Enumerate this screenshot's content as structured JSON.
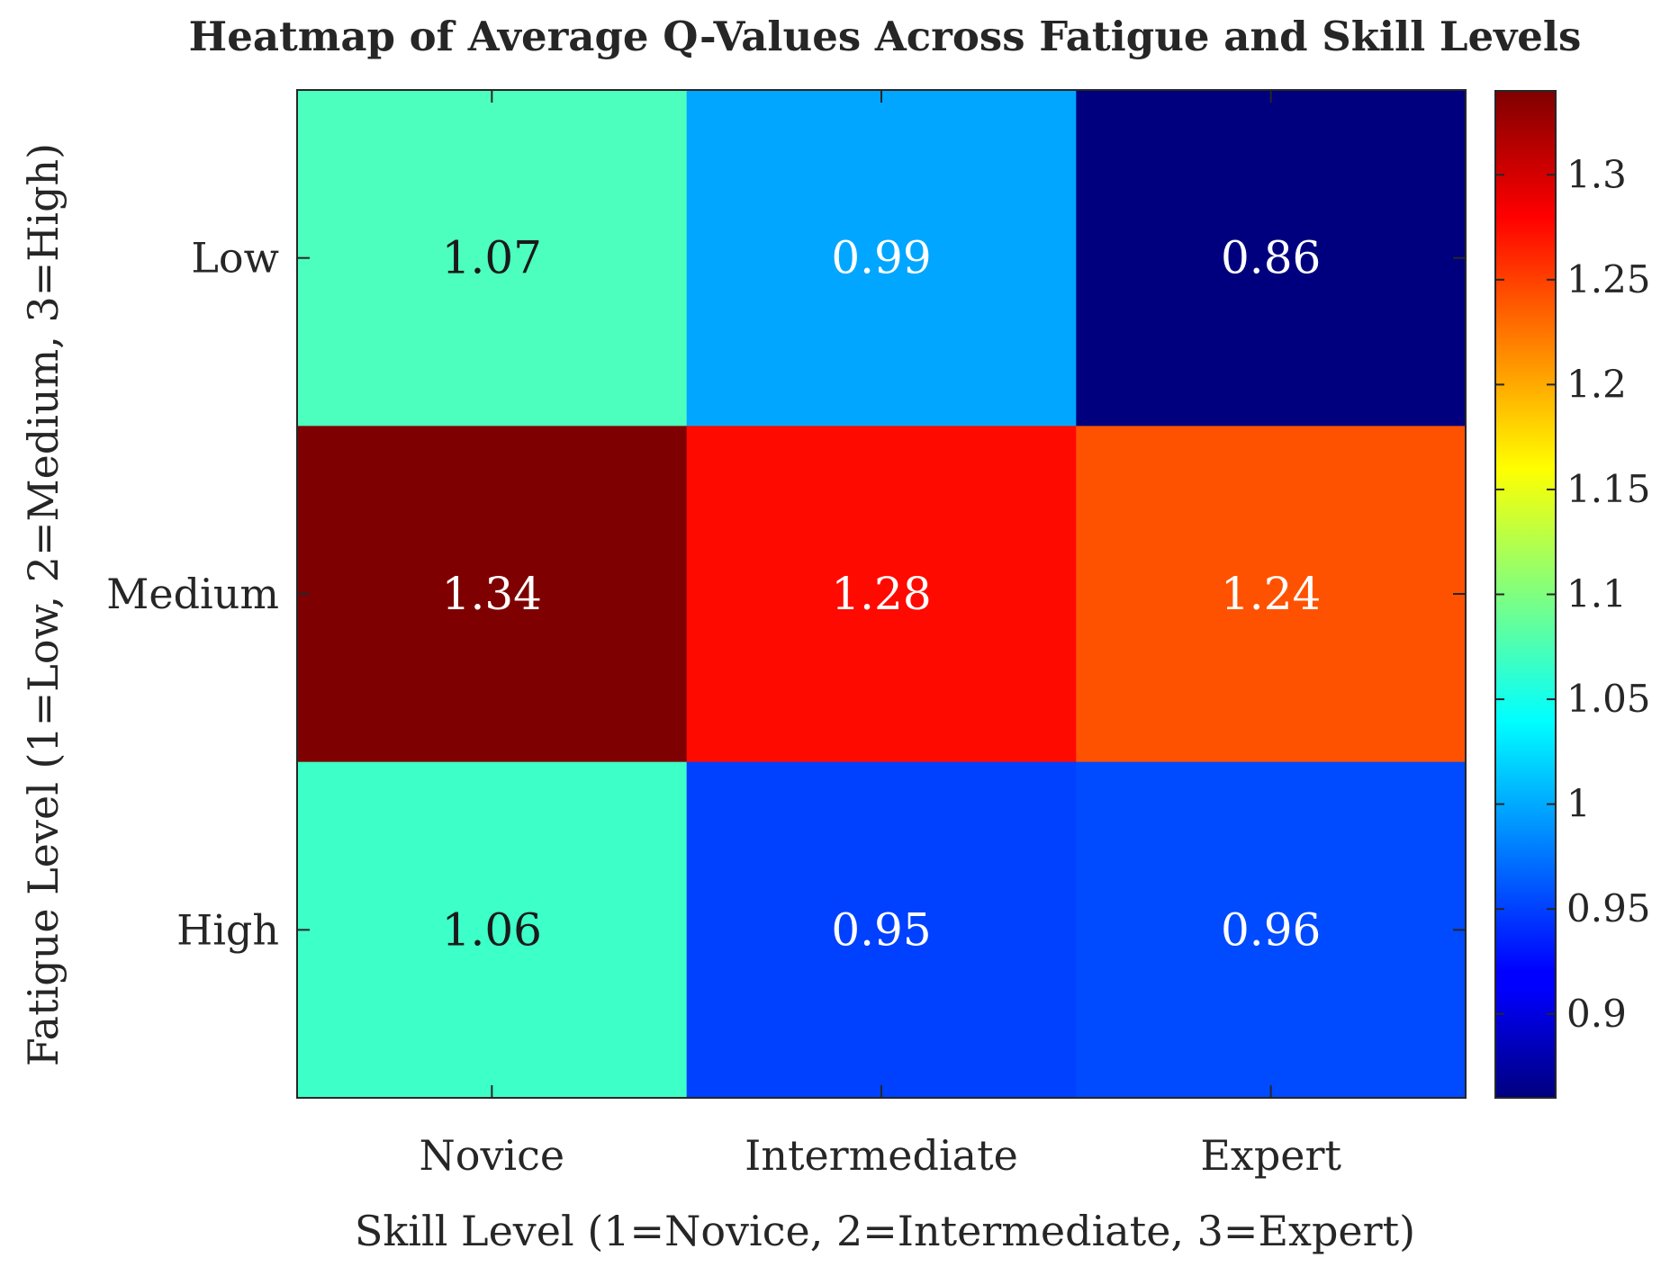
{
  "chart_data": {
    "type": "heatmap",
    "title": "Heatmap of Average Q-Values Across Fatigue and Skill Levels",
    "xlabel": "Skill Level (1=Novice, 2=Intermediate, 3=Expert)",
    "ylabel": "Fatigue Level (1=Low, 2=Medium, 3=High)",
    "x_categories": [
      "Novice",
      "Intermediate",
      "Expert"
    ],
    "y_categories": [
      "Low",
      "Medium",
      "High"
    ],
    "values": [
      [
        1.07,
        0.99,
        0.86
      ],
      [
        1.34,
        1.28,
        1.24
      ],
      [
        1.06,
        0.95,
        0.96
      ]
    ],
    "cell_labels": [
      [
        "1.07",
        "0.99",
        "0.86"
      ],
      [
        "1.34",
        "1.28",
        "1.24"
      ],
      [
        "1.06",
        "0.95",
        "0.96"
      ]
    ],
    "cell_colors": [
      [
        "#4dffbe",
        "#00a6ff",
        "#00007f"
      ],
      [
        "#7f0000",
        "#ff0a00",
        "#ff5200"
      ],
      [
        "#3dffc8",
        "#0040ff",
        "#004aff"
      ]
    ],
    "cell_text_colors": [
      [
        "#1a1a1a",
        "#ffffff",
        "#ffffff"
      ],
      [
        "#ffffff",
        "#ffffff",
        "#ffffff"
      ],
      [
        "#1a1a1a",
        "#ffffff",
        "#ffffff"
      ]
    ],
    "colormap": "jet",
    "colorbar": {
      "range": [
        0.86,
        1.34
      ],
      "ticks": [
        0.9,
        0.95,
        1,
        1.05,
        1.1,
        1.15,
        1.2,
        1.25,
        1.3
      ],
      "tick_labels": [
        "0.9",
        "0.95",
        "1",
        "1.05",
        "1.1",
        "1.15",
        "1.2",
        "1.25",
        "1.3"
      ]
    }
  }
}
